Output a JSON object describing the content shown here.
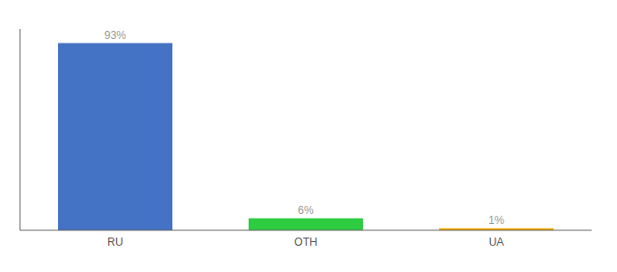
{
  "chart_data": {
    "type": "bar",
    "categories": [
      "RU",
      "OTH",
      "UA"
    ],
    "values": [
      93,
      6,
      1
    ],
    "value_labels": [
      "93%",
      "6%",
      "1%"
    ],
    "colors": [
      "#4472c4",
      "#2ecc40",
      "#f0a500"
    ],
    "ylim": [
      0,
      100
    ],
    "grid": false,
    "data_labels": true,
    "tick_labels": "x"
  }
}
